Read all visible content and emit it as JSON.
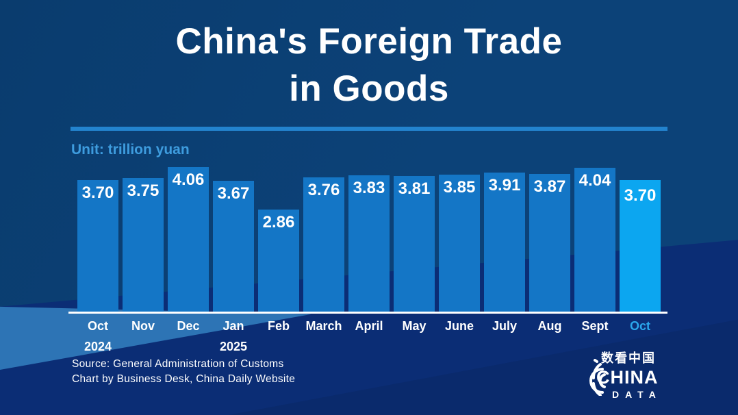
{
  "header": {
    "title_line1": "China's Foreign Trade",
    "title_line2": "in Goods",
    "unit_label": "Unit: trillion yuan"
  },
  "chart_data": {
    "type": "bar",
    "title": "China's Foreign Trade in Goods",
    "unit": "trillion yuan",
    "categories": [
      "Oct",
      "Nov",
      "Dec",
      "Jan",
      "Feb",
      "March",
      "April",
      "May",
      "June",
      "July",
      "Aug",
      "Sept",
      "Oct"
    ],
    "year_labels": [
      "2024",
      "",
      "",
      "2025",
      "",
      "",
      "",
      "",
      "",
      "",
      "",
      "",
      ""
    ],
    "values": [
      3.7,
      3.75,
      4.06,
      3.67,
      2.86,
      3.76,
      3.83,
      3.81,
      3.85,
      3.91,
      3.87,
      4.04,
      3.7
    ],
    "value_labels": [
      "3.70",
      "3.75",
      "4.06",
      "3.67",
      "2.86",
      "3.76",
      "3.83",
      "3.81",
      "3.85",
      "3.91",
      "3.87",
      "4.04",
      "3.70"
    ],
    "highlight_index": 12,
    "ylim": [
      0,
      4.2
    ],
    "grid": false,
    "legend": "none",
    "colors": {
      "bar": "#1476C6",
      "highlight_bar": "#0CA6F0",
      "highlight_month": "#2BA7EC",
      "accent_line": "#2383CE",
      "unit_text": "#3E9CDE",
      "axis_line": "#FFFFFF",
      "value_text": "#FFFFFF"
    }
  },
  "background": {
    "base": "#0C4278",
    "base_dark": "#0A3C6E",
    "deep": "#0B2D75",
    "wedge": "#2D74B5",
    "corner": "#0A2A6C"
  },
  "footer": {
    "source_line1": "Source: General Administration of Customs",
    "source_line2": "Chart by Business Desk, China Daily Website",
    "logo": {
      "cjk": "数看中国",
      "line1": "CHINA",
      "line2": "DATA"
    }
  }
}
